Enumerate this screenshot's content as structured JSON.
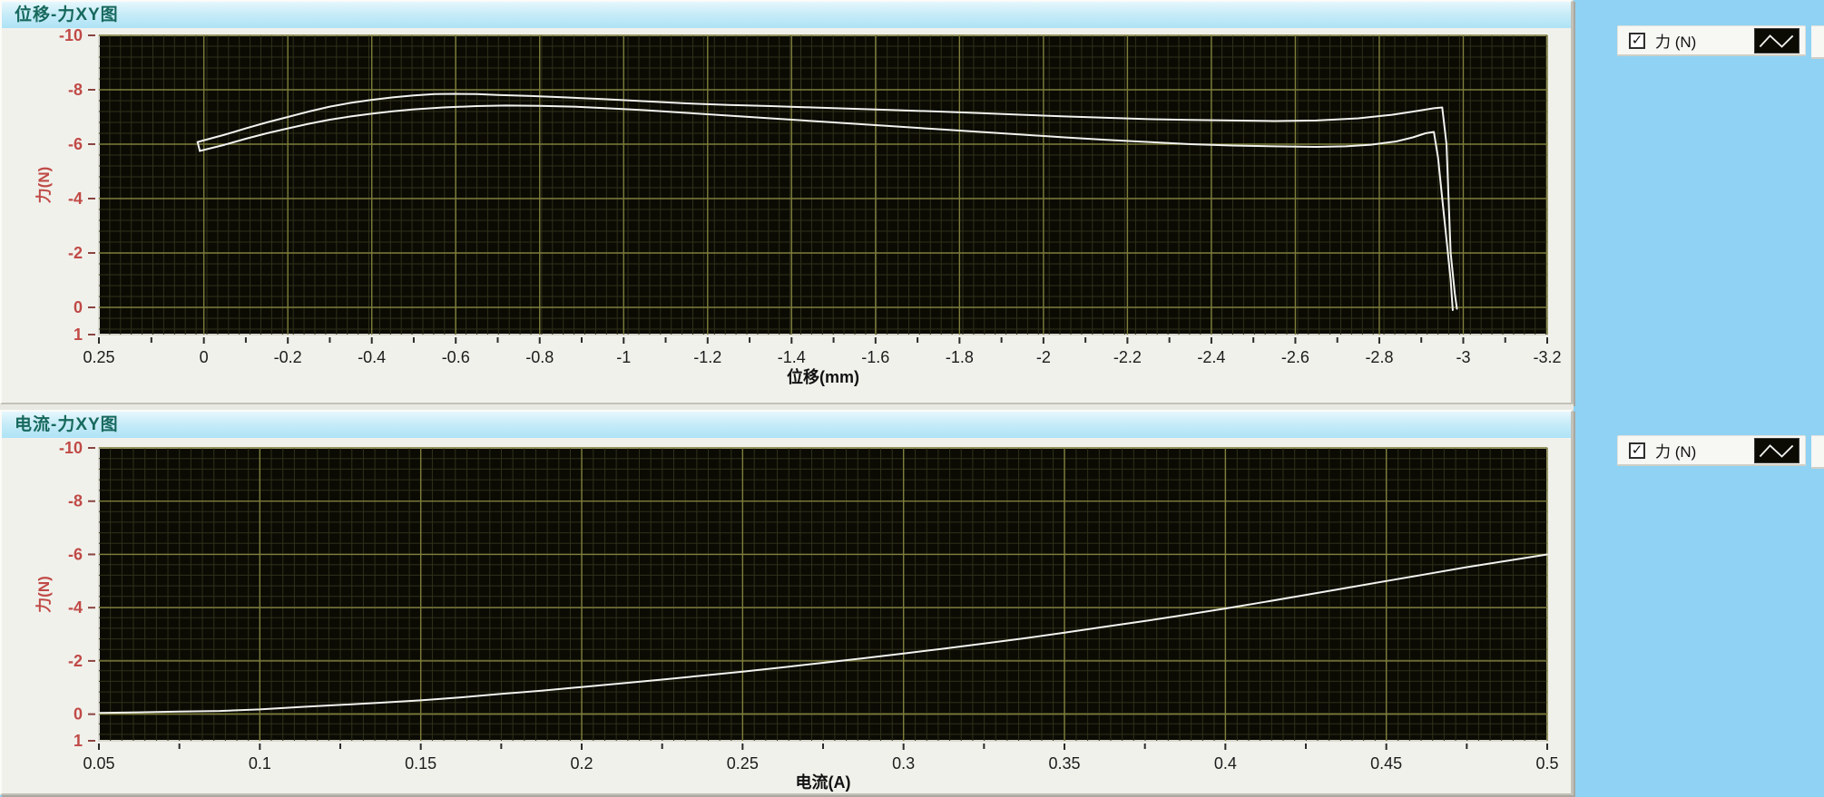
{
  "window": {
    "bg_color": "#8FD2F3",
    "panel_color": "#F1F1EC",
    "header_text_color": "#17695D"
  },
  "legend": {
    "label": "力 (N)",
    "checkbox_checked": true,
    "check_glyph": "✓",
    "swatch_bg": "#0B0B04",
    "swatch_line_color": "#F2F2EF"
  },
  "colors": {
    "plot_bg": "#0B0B04",
    "plot_border": "#D8D8CE",
    "grid_major": "#7E7E3C",
    "grid_minor": "#30301A",
    "curve": "#F2F2EF",
    "y_tick_text": "#C04A46",
    "x_tick_text": "#1C1C1C",
    "axis_title_text": "#111111",
    "y_tick_dash": "#8A4440",
    "x_tick_dash": "#2B2B2B"
  },
  "chart_data": [
    {
      "type": "line",
      "title": "位移-力XY图",
      "xlabel": "位移(mm)",
      "ylabel": "力(N)",
      "legend_label": "力 (N)",
      "legend_position": "top-right",
      "grid": true,
      "x_axis": {
        "left_value": 0.25,
        "right_value": -3.2,
        "tick_values": [
          0.25,
          0,
          -0.2,
          -0.4,
          -0.6,
          -0.8,
          -1,
          -1.2,
          -1.4,
          -1.6,
          -1.8,
          -2,
          -2.2,
          -2.4,
          -2.6,
          -2.8,
          -3,
          -3.2
        ],
        "tick_labels": [
          "0.25",
          "0",
          "-0.2",
          "-0.4",
          "-0.6",
          "-0.8",
          "-1",
          "-1.2",
          "-1.4",
          "-1.6",
          "-1.8",
          "-2",
          "-2.2",
          "-2.4",
          "-2.6",
          "-2.8",
          "-3",
          "-3.2"
        ]
      },
      "y_axis": {
        "top_value": -10,
        "bottom_value": 1,
        "tick_values": [
          -10,
          -8,
          -6,
          -4,
          -2,
          0,
          1
        ],
        "tick_labels": [
          "-10",
          "-8",
          "-6",
          "-4",
          "-2",
          "0",
          "1"
        ]
      },
      "series": [
        {
          "name": "力 (N)",
          "points": [
            [
              0.01,
              -5.78
            ],
            [
              0.015,
              -6.08
            ],
            [
              -0.05,
              -6.35
            ],
            [
              -0.1,
              -6.58
            ],
            [
              -0.15,
              -6.8
            ],
            [
              -0.2,
              -7.0
            ],
            [
              -0.25,
              -7.2
            ],
            [
              -0.3,
              -7.38
            ],
            [
              -0.35,
              -7.52
            ],
            [
              -0.4,
              -7.63
            ],
            [
              -0.45,
              -7.72
            ],
            [
              -0.5,
              -7.79
            ],
            [
              -0.55,
              -7.84
            ],
            [
              -0.6,
              -7.85
            ],
            [
              -0.65,
              -7.84
            ],
            [
              -0.7,
              -7.81
            ],
            [
              -0.78,
              -7.77
            ],
            [
              -0.86,
              -7.72
            ],
            [
              -0.95,
              -7.66
            ],
            [
              -1.05,
              -7.58
            ],
            [
              -1.15,
              -7.5
            ],
            [
              -1.25,
              -7.44
            ],
            [
              -1.35,
              -7.4
            ],
            [
              -1.45,
              -7.35
            ],
            [
              -1.55,
              -7.3
            ],
            [
              -1.65,
              -7.25
            ],
            [
              -1.75,
              -7.2
            ],
            [
              -1.85,
              -7.14
            ],
            [
              -1.95,
              -7.08
            ],
            [
              -2.05,
              -7.02
            ],
            [
              -2.15,
              -6.97
            ],
            [
              -2.25,
              -6.92
            ],
            [
              -2.35,
              -6.89
            ],
            [
              -2.45,
              -6.87
            ],
            [
              -2.55,
              -6.85
            ],
            [
              -2.65,
              -6.87
            ],
            [
              -2.75,
              -6.95
            ],
            [
              -2.83,
              -7.08
            ],
            [
              -2.89,
              -7.22
            ],
            [
              -2.93,
              -7.32
            ],
            [
              -2.95,
              -7.35
            ],
            [
              -2.96,
              -6.0
            ],
            [
              -2.965,
              -4.0
            ],
            [
              -2.97,
              -2.0
            ],
            [
              -2.98,
              -0.5
            ],
            [
              -2.985,
              0.05
            ]
          ]
        },
        {
          "name": "力 (N)",
          "points": [
            [
              0.01,
              -5.75
            ],
            [
              -0.05,
              -5.98
            ],
            [
              -0.1,
              -6.2
            ],
            [
              -0.15,
              -6.4
            ],
            [
              -0.2,
              -6.58
            ],
            [
              -0.25,
              -6.75
            ],
            [
              -0.3,
              -6.9
            ],
            [
              -0.35,
              -7.02
            ],
            [
              -0.4,
              -7.12
            ],
            [
              -0.45,
              -7.21
            ],
            [
              -0.5,
              -7.28
            ],
            [
              -0.57,
              -7.35
            ],
            [
              -0.65,
              -7.4
            ],
            [
              -0.72,
              -7.42
            ],
            [
              -0.8,
              -7.41
            ],
            [
              -0.88,
              -7.38
            ],
            [
              -0.95,
              -7.33
            ],
            [
              -1.05,
              -7.25
            ],
            [
              -1.15,
              -7.15
            ],
            [
              -1.25,
              -7.05
            ],
            [
              -1.35,
              -6.95
            ],
            [
              -1.45,
              -6.85
            ],
            [
              -1.55,
              -6.75
            ],
            [
              -1.65,
              -6.65
            ],
            [
              -1.75,
              -6.55
            ],
            [
              -1.85,
              -6.45
            ],
            [
              -1.95,
              -6.35
            ],
            [
              -2.05,
              -6.25
            ],
            [
              -2.15,
              -6.16
            ],
            [
              -2.25,
              -6.08
            ],
            [
              -2.35,
              -6.0
            ],
            [
              -2.45,
              -5.95
            ],
            [
              -2.55,
              -5.92
            ],
            [
              -2.65,
              -5.9
            ],
            [
              -2.72,
              -5.92
            ],
            [
              -2.78,
              -5.98
            ],
            [
              -2.84,
              -6.1
            ],
            [
              -2.88,
              -6.25
            ],
            [
              -2.91,
              -6.4
            ],
            [
              -2.93,
              -6.45
            ],
            [
              -2.94,
              -5.5
            ],
            [
              -2.95,
              -4.0
            ],
            [
              -2.96,
              -2.5
            ],
            [
              -2.97,
              -1.0
            ],
            [
              -2.975,
              0.1
            ]
          ]
        }
      ]
    },
    {
      "type": "line",
      "title": "电流-力XY图",
      "xlabel": "电流(A)",
      "ylabel": "力(N)",
      "legend_label": "力 (N)",
      "legend_position": "top-right",
      "grid": true,
      "x_axis": {
        "left_value": 0.05,
        "right_value": 0.5,
        "tick_values": [
          0.05,
          0.1,
          0.15,
          0.2,
          0.25,
          0.3,
          0.35,
          0.4,
          0.45,
          0.5
        ],
        "tick_labels": [
          "0.05",
          "0.1",
          "0.15",
          "0.2",
          "0.25",
          "0.3",
          "0.35",
          "0.4",
          "0.45",
          "0.5"
        ]
      },
      "y_axis": {
        "top_value": -10,
        "bottom_value": 1,
        "tick_values": [
          -10,
          -8,
          -6,
          -4,
          -2,
          0,
          1
        ],
        "tick_labels": [
          "-10",
          "-8",
          "-6",
          "-4",
          "-2",
          "0",
          "1"
        ]
      },
      "series": [
        {
          "name": "力 (N)",
          "points": [
            [
              0.05,
              -0.05
            ],
            [
              0.0625,
              -0.07
            ],
            [
              0.075,
              -0.1
            ],
            [
              0.0875,
              -0.12
            ],
            [
              0.1,
              -0.18
            ],
            [
              0.1125,
              -0.27
            ],
            [
              0.125,
              -0.35
            ],
            [
              0.1375,
              -0.43
            ],
            [
              0.15,
              -0.52
            ],
            [
              0.1625,
              -0.63
            ],
            [
              0.175,
              -0.76
            ],
            [
              0.1875,
              -0.88
            ],
            [
              0.2,
              -1.02
            ],
            [
              0.2125,
              -1.16
            ],
            [
              0.225,
              -1.3
            ],
            [
              0.2375,
              -1.45
            ],
            [
              0.25,
              -1.6
            ],
            [
              0.2625,
              -1.76
            ],
            [
              0.275,
              -1.93
            ],
            [
              0.2875,
              -2.1
            ],
            [
              0.3,
              -2.28
            ],
            [
              0.3125,
              -2.46
            ],
            [
              0.325,
              -2.65
            ],
            [
              0.3375,
              -2.85
            ],
            [
              0.35,
              -3.06
            ],
            [
              0.3625,
              -3.28
            ],
            [
              0.375,
              -3.5
            ],
            [
              0.3875,
              -3.73
            ],
            [
              0.4,
              -3.97
            ],
            [
              0.4125,
              -4.22
            ],
            [
              0.425,
              -4.48
            ],
            [
              0.4375,
              -4.74
            ],
            [
              0.45,
              -5.0
            ],
            [
              0.4625,
              -5.26
            ],
            [
              0.475,
              -5.52
            ],
            [
              0.4875,
              -5.76
            ],
            [
              0.5,
              -6.0
            ]
          ]
        }
      ]
    }
  ]
}
